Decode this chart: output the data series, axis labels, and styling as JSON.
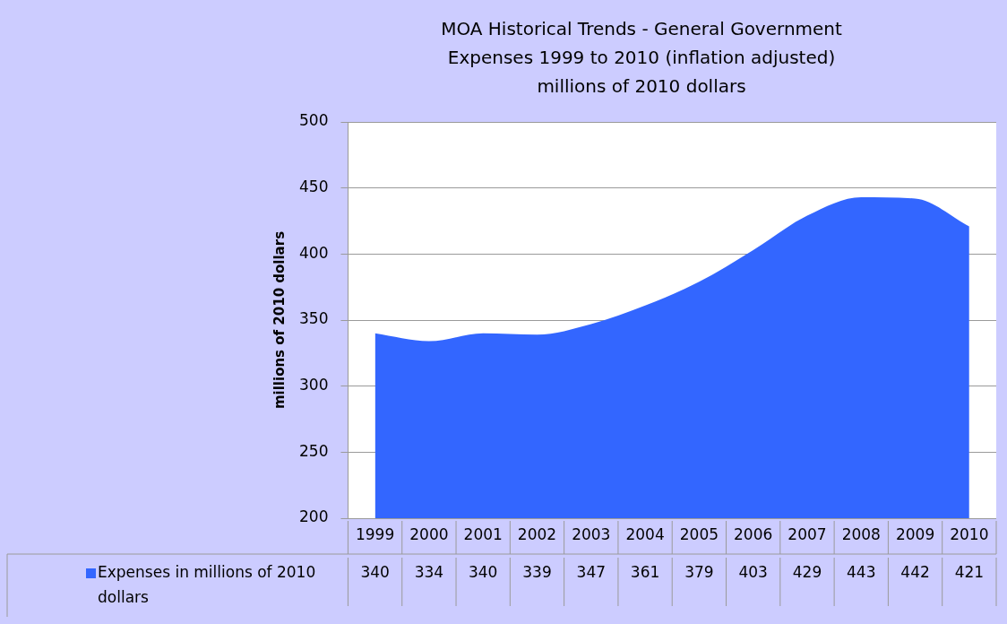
{
  "chart_data": {
    "type": "area",
    "title": "MOA Historical Trends - General Government\nExpenses 1999 to 2010 (inflation adjusted)\nmillions of 2010 dollars",
    "ylabel": "millions of 2010 dollars",
    "categories": [
      "1999",
      "2000",
      "2001",
      "2002",
      "2003",
      "2004",
      "2005",
      "2006",
      "2007",
      "2008",
      "2009",
      "2010"
    ],
    "series": [
      {
        "name": "Expenses in millions of 2010 dollars",
        "color": "#3366ff",
        "values": [
          340,
          334,
          340,
          339,
          347,
          361,
          379,
          403,
          429,
          443,
          442,
          421
        ]
      }
    ],
    "ylim": [
      200,
      500
    ],
    "yticks": [
      200,
      250,
      300,
      350,
      400,
      450,
      500
    ],
    "grid": "y",
    "legend": "bottom left",
    "data_labels": true
  }
}
